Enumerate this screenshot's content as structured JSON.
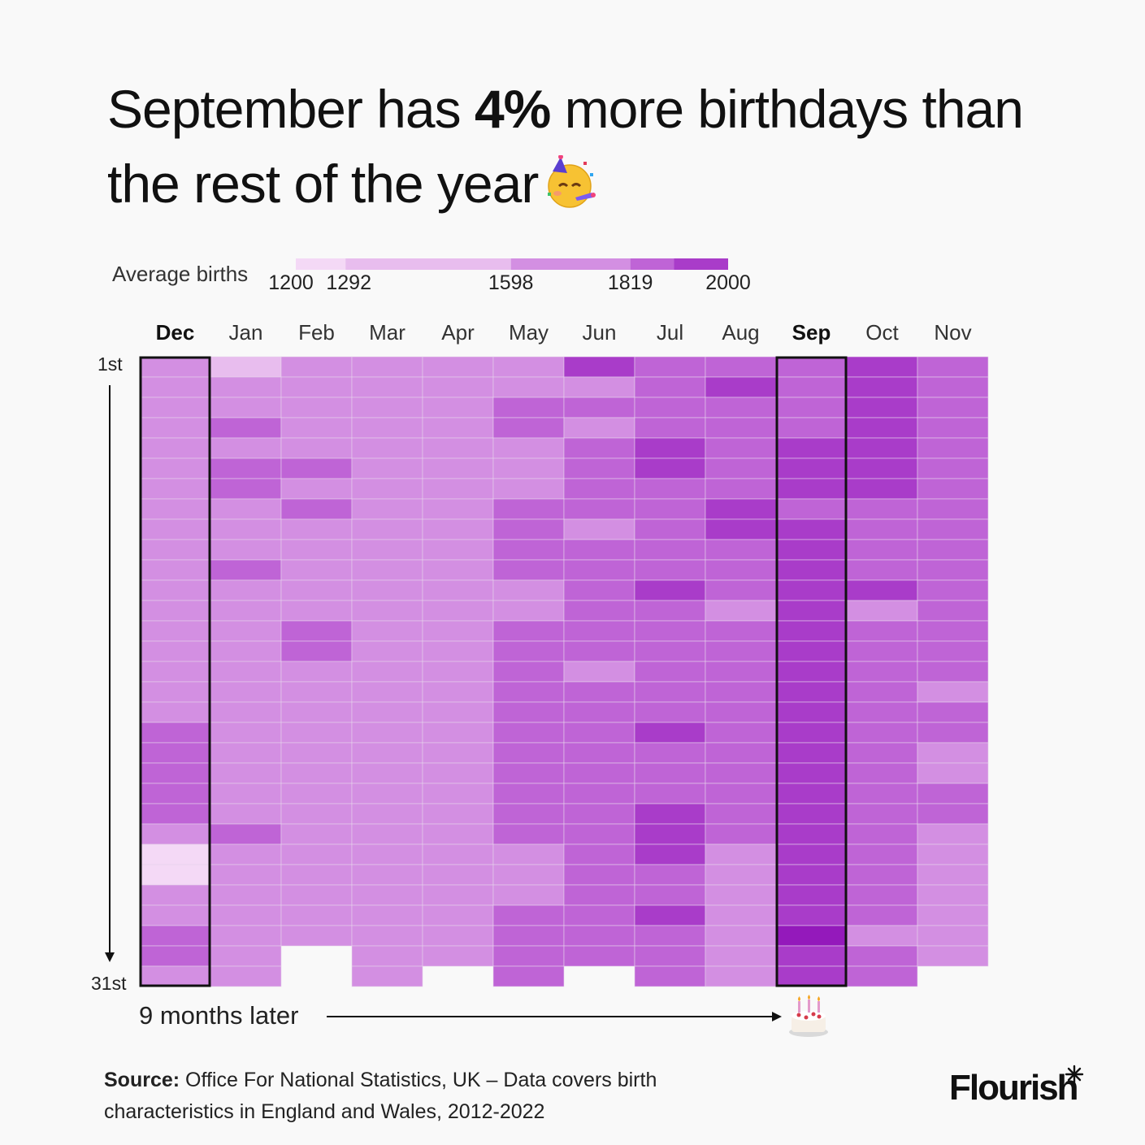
{
  "title": {
    "prefix": "September has ",
    "emphasis": "4%",
    "suffix": " more birthdays than the rest of the year"
  },
  "legend": {
    "label": "Average births",
    "ticks": [
      "1200",
      "1292",
      "1598",
      "1819",
      "2000"
    ],
    "bins": [
      {
        "from": 1200,
        "to": 1292,
        "color": "#f4d9f6"
      },
      {
        "from": 1292,
        "to": 1598,
        "color": "#e8bdee"
      },
      {
        "from": 1598,
        "to": 1819,
        "color": "#d38fe2"
      },
      {
        "from": 1819,
        "to": 1900,
        "color": "#bf64d6"
      },
      {
        "from": 1900,
        "to": 2000,
        "color": "#a93cc9"
      }
    ]
  },
  "annotation": {
    "text": "9 months later",
    "arrow_target_icon": "birthday-cake-icon"
  },
  "source": {
    "label": "Source:",
    "text": " Office For National Statistics, UK – Data covers birth characteristics in England and Wales, 2012-2022"
  },
  "brand": {
    "name": "Flourish"
  },
  "colors": {
    "level0": "#f4d9f6",
    "level1": "#e8bdee",
    "level2": "#d38fe2",
    "level3": "#bf64d6",
    "level4": "#a93cc9",
    "level5": "#9419bb",
    "highlight_border": "#111111"
  },
  "chart_data": {
    "type": "heatmap",
    "x_categories": [
      "Dec",
      "Jan",
      "Feb",
      "Mar",
      "Apr",
      "May",
      "Jun",
      "Jul",
      "Aug",
      "Sep",
      "Oct",
      "Nov"
    ],
    "highlighted_columns": [
      "Dec",
      "Sep"
    ],
    "y_labels": {
      "first": "1st",
      "last": "31st"
    },
    "value_unit": "average births per day",
    "level_values": [
      1250,
      1500,
      1700,
      1850,
      1950,
      2030
    ],
    "levels": [
      [
        2,
        2,
        2,
        2,
        2,
        2,
        2,
        2,
        2,
        2,
        2,
        2,
        2,
        2,
        2,
        2,
        2,
        2,
        3,
        3,
        3,
        3,
        3,
        2,
        0,
        0,
        2,
        2,
        3,
        3,
        2
      ],
      [
        1,
        2,
        2,
        3,
        2,
        3,
        3,
        2,
        2,
        2,
        3,
        2,
        2,
        2,
        2,
        2,
        2,
        2,
        2,
        2,
        2,
        2,
        2,
        3,
        2,
        2,
        2,
        2,
        2,
        2,
        2
      ],
      [
        2,
        2,
        2,
        2,
        2,
        3,
        2,
        3,
        2,
        2,
        2,
        2,
        2,
        3,
        3,
        2,
        2,
        2,
        2,
        2,
        2,
        2,
        2,
        2,
        2,
        2,
        2,
        2,
        2
      ],
      [
        2,
        2,
        2,
        2,
        2,
        2,
        2,
        2,
        2,
        2,
        2,
        2,
        2,
        2,
        2,
        2,
        2,
        2,
        2,
        2,
        2,
        2,
        2,
        2,
        2,
        2,
        2,
        2,
        2,
        2,
        2
      ],
      [
        2,
        2,
        2,
        2,
        2,
        2,
        2,
        2,
        2,
        2,
        2,
        2,
        2,
        2,
        2,
        2,
        2,
        2,
        2,
        2,
        2,
        2,
        2,
        2,
        2,
        2,
        2,
        2,
        2,
        2
      ],
      [
        2,
        2,
        3,
        3,
        2,
        2,
        2,
        3,
        3,
        3,
        3,
        2,
        2,
        3,
        3,
        3,
        3,
        3,
        3,
        3,
        3,
        3,
        3,
        3,
        2,
        2,
        2,
        3,
        3,
        3,
        3
      ],
      [
        4,
        2,
        3,
        2,
        3,
        3,
        3,
        3,
        2,
        3,
        3,
        3,
        3,
        3,
        3,
        2,
        3,
        3,
        3,
        3,
        3,
        3,
        3,
        3,
        3,
        3,
        3,
        3,
        3,
        3
      ],
      [
        3,
        3,
        3,
        3,
        4,
        4,
        3,
        3,
        3,
        3,
        3,
        4,
        3,
        3,
        3,
        3,
        3,
        3,
        4,
        3,
        3,
        3,
        4,
        4,
        4,
        3,
        3,
        4,
        3,
        3,
        3
      ],
      [
        3,
        4,
        3,
        3,
        3,
        3,
        3,
        4,
        4,
        3,
        3,
        3,
        2,
        3,
        3,
        3,
        3,
        3,
        3,
        3,
        3,
        3,
        3,
        3,
        2,
        2,
        2,
        2,
        2,
        2,
        2
      ],
      [
        3,
        3,
        3,
        3,
        4,
        4,
        4,
        3,
        4,
        4,
        4,
        4,
        4,
        4,
        4,
        4,
        4,
        4,
        4,
        4,
        4,
        4,
        4,
        4,
        4,
        4,
        4,
        4,
        5,
        4,
        4
      ],
      [
        4,
        4,
        4,
        4,
        4,
        4,
        4,
        3,
        3,
        3,
        3,
        4,
        2,
        3,
        3,
        3,
        3,
        3,
        3,
        3,
        3,
        3,
        3,
        3,
        3,
        3,
        3,
        3,
        2,
        3,
        3
      ],
      [
        3,
        3,
        3,
        3,
        3,
        3,
        3,
        3,
        3,
        3,
        3,
        3,
        3,
        3,
        3,
        3,
        2,
        3,
        3,
        2,
        2,
        3,
        3,
        2,
        2,
        2,
        2,
        2,
        2,
        2
      ]
    ]
  }
}
